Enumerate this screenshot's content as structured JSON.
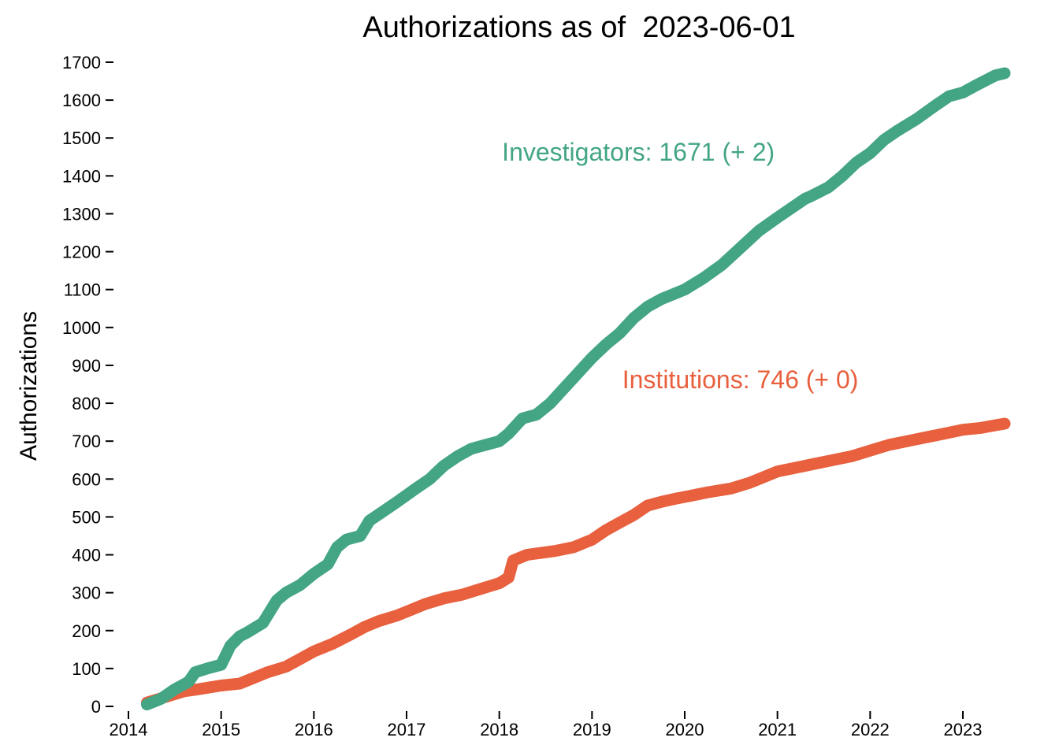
{
  "chart_data": {
    "type": "line",
    "title": "Authorizations as of  2023-06-01",
    "xlabel": "",
    "ylabel": "Authorizations",
    "xlim": [
      2014,
      2023.55
    ],
    "ylim": [
      0,
      1700
    ],
    "x_ticks": [
      2014,
      2015,
      2016,
      2017,
      2018,
      2019,
      2020,
      2021,
      2022,
      2023
    ],
    "y_ticks": [
      0,
      100,
      200,
      300,
      400,
      500,
      600,
      700,
      800,
      900,
      1000,
      1100,
      1200,
      1300,
      1400,
      1500,
      1600,
      1700
    ],
    "grid": false,
    "legend": "none",
    "series": [
      {
        "name": "Investigators",
        "color": "#43a584",
        "label": "Investigators: 1671 (+ 2)",
        "x": [
          2014.2,
          2014.35,
          2014.5,
          2014.65,
          2014.72,
          2014.85,
          2015.0,
          2015.1,
          2015.2,
          2015.28,
          2015.45,
          2015.6,
          2015.7,
          2015.85,
          2016.0,
          2016.15,
          2016.25,
          2016.35,
          2016.5,
          2016.6,
          2016.75,
          2016.9,
          2017.1,
          2017.25,
          2017.4,
          2017.55,
          2017.7,
          2017.85,
          2018.0,
          2018.1,
          2018.25,
          2018.4,
          2018.55,
          2018.7,
          2018.85,
          2019.0,
          2019.15,
          2019.3,
          2019.45,
          2019.6,
          2019.75,
          2019.9,
          2020.0,
          2020.2,
          2020.4,
          2020.6,
          2020.8,
          2021.0,
          2021.15,
          2021.3,
          2021.35,
          2021.55,
          2021.7,
          2021.85,
          2022.0,
          2022.15,
          2022.3,
          2022.5,
          2022.7,
          2022.85,
          2023.0,
          2023.15,
          2023.35,
          2023.45
        ],
        "values": [
          5,
          20,
          45,
          65,
          90,
          100,
          110,
          160,
          185,
          195,
          220,
          280,
          300,
          320,
          350,
          375,
          420,
          440,
          450,
          490,
          515,
          540,
          575,
          600,
          635,
          660,
          680,
          690,
          700,
          720,
          760,
          770,
          800,
          840,
          880,
          920,
          955,
          985,
          1025,
          1055,
          1075,
          1090,
          1100,
          1130,
          1165,
          1210,
          1255,
          1290,
          1315,
          1340,
          1345,
          1370,
          1400,
          1435,
          1460,
          1495,
          1520,
          1550,
          1585,
          1610,
          1620,
          1640,
          1665,
          1671
        ]
      },
      {
        "name": "Institutions",
        "color": "#e8603e",
        "label": "Institutions: 746 (+ 0)",
        "x": [
          2014.2,
          2014.4,
          2014.6,
          2014.75,
          2015.0,
          2015.2,
          2015.35,
          2015.5,
          2015.7,
          2015.85,
          2016.0,
          2016.2,
          2016.4,
          2016.55,
          2016.7,
          2016.9,
          2017.05,
          2017.2,
          2017.4,
          2017.6,
          2017.8,
          2018.0,
          2018.1,
          2018.15,
          2018.3,
          2018.45,
          2018.6,
          2018.8,
          2019.0,
          2019.15,
          2019.3,
          2019.45,
          2019.6,
          2019.75,
          2019.9,
          2020.05,
          2020.25,
          2020.5,
          2020.7,
          2020.85,
          2021.0,
          2021.2,
          2021.4,
          2021.6,
          2021.8,
          2022.0,
          2022.2,
          2022.4,
          2022.6,
          2022.8,
          2023.0,
          2023.2,
          2023.35,
          2023.45
        ],
        "values": [
          10,
          25,
          40,
          45,
          55,
          60,
          75,
          90,
          105,
          125,
          145,
          165,
          190,
          210,
          225,
          240,
          255,
          270,
          285,
          295,
          310,
          325,
          340,
          385,
          400,
          405,
          410,
          420,
          440,
          465,
          485,
          505,
          530,
          540,
          548,
          555,
          565,
          575,
          590,
          605,
          620,
          630,
          640,
          650,
          660,
          675,
          690,
          700,
          710,
          720,
          730,
          735,
          742,
          746
        ]
      }
    ]
  }
}
